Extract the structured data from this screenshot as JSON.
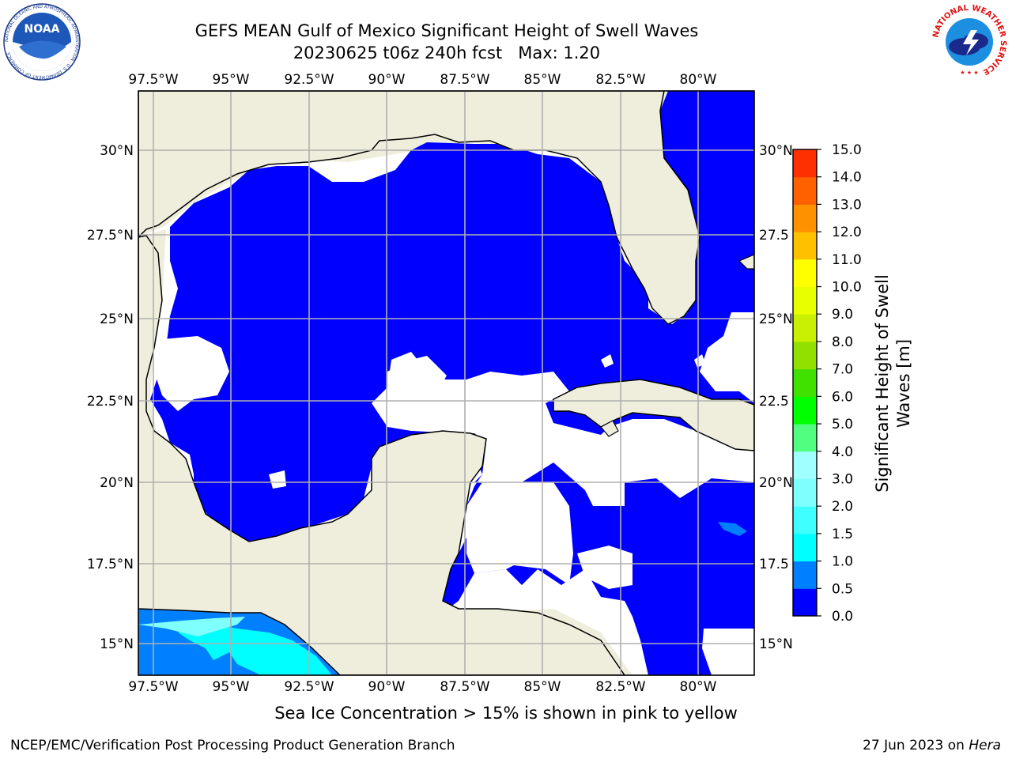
{
  "header": {
    "title_line1": "GEFS MEAN Gulf of Mexico Significant Height of Swell Waves",
    "title_line2": "20230625 t06z 240h fcst   Max: 1.20"
  },
  "logos": {
    "noaa_text": "NOAA",
    "noaa_ring_text": "NATIONAL OCEANIC AND ATMOSPHERIC ADMINISTRATION · U.S. DEPARTMENT OF COMMERCE",
    "nws_ring_text": "NATIONAL WEATHER SERVICE"
  },
  "map": {
    "lon_labels": [
      "97.5°W",
      "95°W",
      "92.5°W",
      "90°W",
      "87.5°W",
      "85°W",
      "82.5°W",
      "80°W"
    ],
    "lat_labels": [
      "30°N",
      "27.5°N",
      "25°N",
      "22.5°N",
      "20°N",
      "17.5°N",
      "15°N"
    ],
    "lat_labels_right": [
      "30°N",
      "27.5",
      "25°N",
      "22.5",
      "20°N",
      "17.5",
      "15°N"
    ],
    "colors": {
      "land": "#efeedd",
      "ocean_low": "#0000ff",
      "ocean_mid": "#0080ff",
      "ocean_high": "#00ffff",
      "grid": "#b0b0b0"
    }
  },
  "colorbar": {
    "label_line1": "Significant Height of Swell",
    "label_line2": "Waves [m]",
    "ticks": [
      "0.0",
      "0.5",
      "1.0",
      "1.5",
      "2.0",
      "3.0",
      "4.0",
      "5.0",
      "6.0",
      "7.0",
      "8.0",
      "9.0",
      "10.0",
      "11.0",
      "12.0",
      "13.0",
      "14.0",
      "15.0"
    ],
    "colors": [
      "#0000ff",
      "#0080ff",
      "#00ffff",
      "#40ffff",
      "#80ffff",
      "#a0ffff",
      "#50ff80",
      "#00ff00",
      "#40e000",
      "#90e000",
      "#c8f000",
      "#e8ff00",
      "#ffff00",
      "#ffc000",
      "#ff9000",
      "#ff6000",
      "#ff3000",
      "#ff0000"
    ]
  },
  "caption": "Sea Ice Concentration > 15% is shown in pink to yellow",
  "footer": {
    "left": "NCEP/EMC/Verification Post Processing Product Generation Branch",
    "right_prefix": "27 Jun 2023 on ",
    "right_host": "Hera"
  }
}
